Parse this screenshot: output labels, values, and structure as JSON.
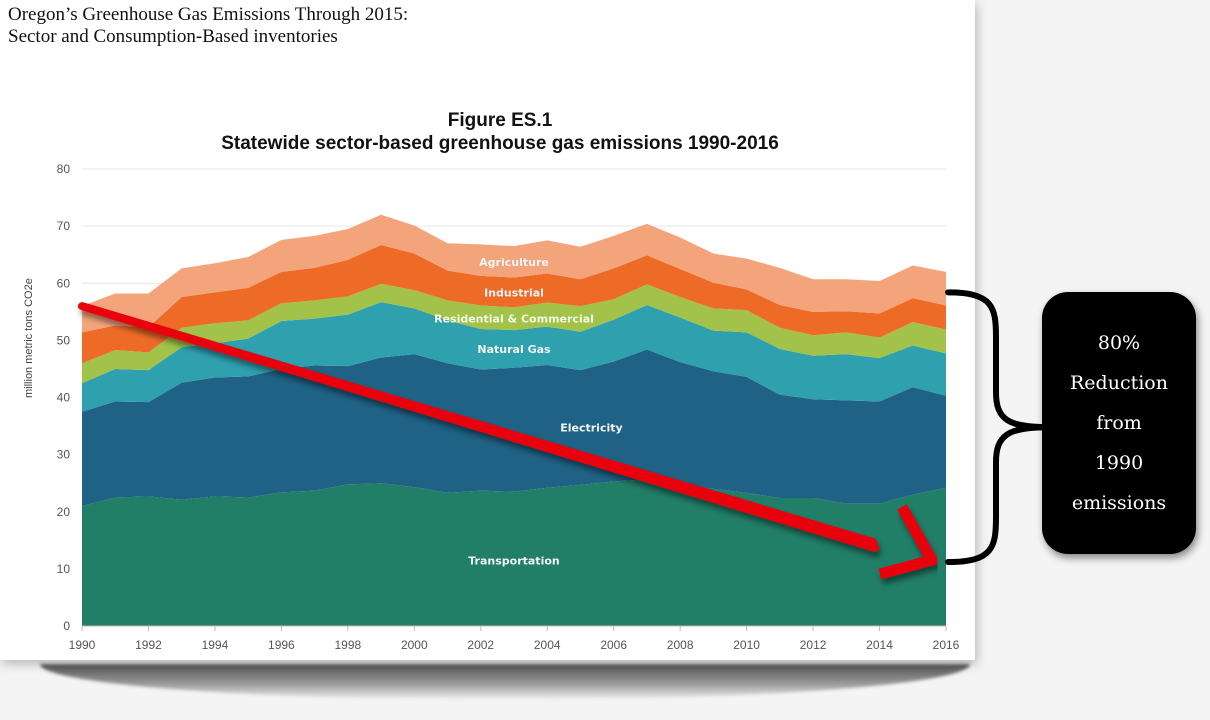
{
  "document": {
    "title_line1": "Oregon’s Greenhouse Gas Emissions Through 2015:",
    "title_line2": "Sector and Consumption-Based inventories"
  },
  "callout": {
    "lines": [
      "80%",
      "Reduction",
      "from",
      "1990",
      "emissions"
    ]
  },
  "colors": {
    "Transportation": "#217E67",
    "Electricity": "#1F6285",
    "Natural Gas": "#2FA0AE",
    "Residential & Commercial": "#A3C24A",
    "Industrial": "#EE6B27",
    "Agriculture": "#F4A47A",
    "arrow": "#E8000B",
    "gridline": "#e6e6e6"
  },
  "chart_data": {
    "type": "area",
    "stacked": true,
    "title": "Figure ES.1",
    "subtitle": "Statewide sector-based greenhouse gas emissions 1990-2016",
    "xlabel": "",
    "ylabel": "million metric tons CO2e",
    "ylim": [
      0,
      80
    ],
    "yticks": [
      0,
      10,
      20,
      30,
      40,
      50,
      60,
      70,
      80
    ],
    "xlim": [
      1990,
      2016
    ],
    "xticks": [
      1990,
      1992,
      1994,
      1996,
      1998,
      2000,
      2002,
      2004,
      2006,
      2008,
      2010,
      2012,
      2014,
      2016
    ],
    "grid": true,
    "legend": "inline-labels",
    "x": [
      1990,
      1991,
      1992,
      1993,
      1994,
      1995,
      1996,
      1997,
      1998,
      1999,
      2000,
      2001,
      2002,
      2003,
      2004,
      2005,
      2006,
      2007,
      2008,
      2009,
      2010,
      2011,
      2012,
      2013,
      2014,
      2015,
      2016
    ],
    "series": [
      {
        "name": "Transportation",
        "values": [
          21.0,
          22.5,
          22.7,
          22.1,
          22.7,
          22.5,
          23.4,
          23.7,
          24.8,
          25.0,
          24.3,
          23.3,
          23.7,
          23.5,
          24.2,
          24.7,
          25.3,
          25.7,
          24.5,
          24.0,
          23.3,
          22.4,
          22.4,
          21.4,
          21.4,
          23.0,
          24.2
        ]
      },
      {
        "name": "Electricity",
        "values": [
          16.5,
          16.8,
          16.5,
          20.5,
          20.8,
          21.2,
          21.6,
          21.9,
          20.7,
          22.0,
          23.3,
          22.7,
          21.2,
          21.7,
          21.5,
          20.1,
          21.0,
          22.7,
          21.7,
          20.6,
          20.3,
          18.1,
          17.3,
          18.1,
          17.9,
          18.8,
          16.1
        ]
      },
      {
        "name": "Natural Gas",
        "values": [
          5.0,
          5.7,
          5.6,
          6.2,
          6.0,
          6.6,
          8.4,
          8.2,
          9.0,
          9.7,
          8.0,
          7.5,
          7.1,
          6.6,
          6.7,
          6.7,
          7.3,
          7.8,
          7.8,
          7.1,
          7.8,
          8.0,
          7.6,
          8.1,
          7.6,
          7.3,
          7.4
        ]
      },
      {
        "name": "Residential & Commercial",
        "values": [
          3.5,
          3.3,
          3.1,
          3.4,
          3.5,
          3.2,
          3.1,
          3.2,
          3.2,
          3.2,
          3.2,
          3.5,
          4.1,
          4.0,
          4.2,
          4.5,
          3.6,
          3.6,
          3.6,
          3.9,
          3.9,
          3.7,
          3.6,
          3.8,
          3.6,
          4.1,
          4.2
        ]
      },
      {
        "name": "Industrial",
        "values": [
          5.4,
          4.3,
          4.4,
          5.4,
          5.4,
          5.7,
          5.5,
          5.7,
          6.4,
          6.8,
          6.4,
          5.2,
          5.2,
          5.2,
          5.1,
          4.7,
          5.4,
          5.1,
          4.9,
          4.5,
          3.6,
          4.0,
          4.1,
          3.7,
          4.2,
          4.2,
          4.2
        ]
      },
      {
        "name": "Agriculture",
        "values": [
          4.6,
          5.6,
          5.9,
          5.0,
          5.1,
          5.4,
          5.6,
          5.6,
          5.4,
          5.3,
          4.9,
          4.8,
          5.5,
          5.5,
          5.8,
          5.7,
          5.7,
          5.5,
          5.5,
          5.1,
          5.4,
          6.5,
          5.7,
          5.6,
          5.7,
          5.7,
          5.9
        ]
      }
    ],
    "inline_labels": [
      "Transportation",
      "Electricity",
      "Natural Gas",
      "Residential & Commercial",
      "Industrial",
      "Agriculture"
    ],
    "annotations": [
      {
        "type": "arrow",
        "from": [
          1990,
          56.0
        ],
        "to": [
          2016,
          11.2
        ],
        "description": "red downward trend arrow"
      },
      {
        "type": "brace",
        "span": [
          11.2,
          58.4
        ],
        "at_x": 2016,
        "label": "80% Reduction from 1990 emissions"
      }
    ]
  }
}
